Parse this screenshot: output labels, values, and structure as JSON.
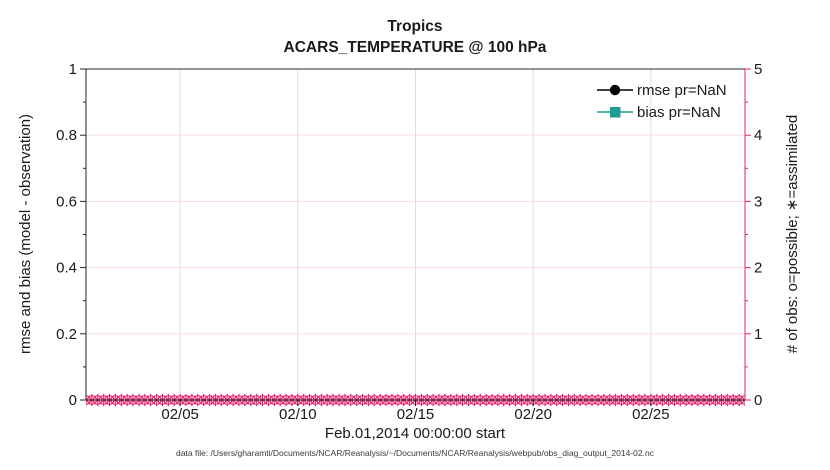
{
  "figure": {
    "title_line1": "Tropics",
    "title_line2": "ACARS_TEMPERATURE @ 100 hPa",
    "footer_datafile": "data file: /Users/gharamti/Documents/NCAR/Reanalysis/~/Documents/NCAR/Reanalysis/webpub/obs_diag_output_2014-02.nc"
  },
  "colors": {
    "axis_black": "#262626",
    "obs_pink": "#E0256C",
    "grid_gray": "#D9D9D9",
    "grid_pink": "#F7D9E3",
    "bias_teal": "#1E9B94",
    "rmse_black": "#000000"
  },
  "legend": {
    "items": [
      {
        "label": "rmse pr=NaN",
        "marker": "filled-circle",
        "color": "#000000"
      },
      {
        "label": "bias pr=NaN",
        "marker": "filled-square",
        "color": "#1E9B94"
      }
    ]
  },
  "chart_data": {
    "type": "line",
    "title": "Tropics",
    "subtitle": "ACARS_TEMPERATURE @ 100 hPa",
    "xlabel": "Feb.01,2014 00:00:00 start",
    "ylabel_left": "rmse and bias (model - observation)",
    "ylabel_right": "# of obs: o=possible; ∗=assimilated",
    "ylim_left": [
      0,
      1
    ],
    "ylim_right": [
      0,
      5
    ],
    "x_range_days": [
      0,
      28
    ],
    "x_ticks": [
      {
        "label": "02/05",
        "day": 4
      },
      {
        "label": "02/10",
        "day": 9
      },
      {
        "label": "02/15",
        "day": 14
      },
      {
        "label": "02/20",
        "day": 19
      },
      {
        "label": "02/25",
        "day": 24
      }
    ],
    "y_ticks_left": [
      {
        "label": "0",
        "v": 0
      },
      {
        "label": "0.2",
        "v": 0.2
      },
      {
        "label": "0.4",
        "v": 0.4
      },
      {
        "label": "0.6",
        "v": 0.6
      },
      {
        "label": "0.8",
        "v": 0.8
      },
      {
        "label": "1",
        "v": 1
      }
    ],
    "y_ticks_right": [
      {
        "label": "0",
        "v": 0
      },
      {
        "label": "1",
        "v": 1
      },
      {
        "label": "2",
        "v": 2
      },
      {
        "label": "3",
        "v": 3
      },
      {
        "label": "4",
        "v": 4
      },
      {
        "label": "5",
        "v": 5
      }
    ],
    "grid": true,
    "legend_position": "top-right-inside",
    "series": [
      {
        "name": "rmse pr=NaN",
        "axis": "left",
        "marker": "filled-circle",
        "color": "#000000",
        "values": "all NaN - no curve plotted"
      },
      {
        "name": "bias pr=NaN",
        "axis": "left",
        "marker": "filled-square",
        "color": "#1E9B94",
        "values": "all NaN - no curve plotted"
      },
      {
        "name": "# obs possible (o markers)",
        "axis": "right",
        "marker": "o",
        "color": "#E0256C",
        "constant_value": 0,
        "times": "2014-02-01 00:00 to 2014-03-01 00:00 every 6 h"
      },
      {
        "name": "# obs assimilated (∗ markers)",
        "axis": "right",
        "marker": "∗",
        "color": "#E0256C",
        "constant_value": 0,
        "times": "2014-02-01 00:00 to 2014-03-01 00:00 every 6 h"
      }
    ],
    "obs_band": {
      "n_points": 113,
      "day_start": 0,
      "day_end": 28,
      "value": 0
    }
  }
}
